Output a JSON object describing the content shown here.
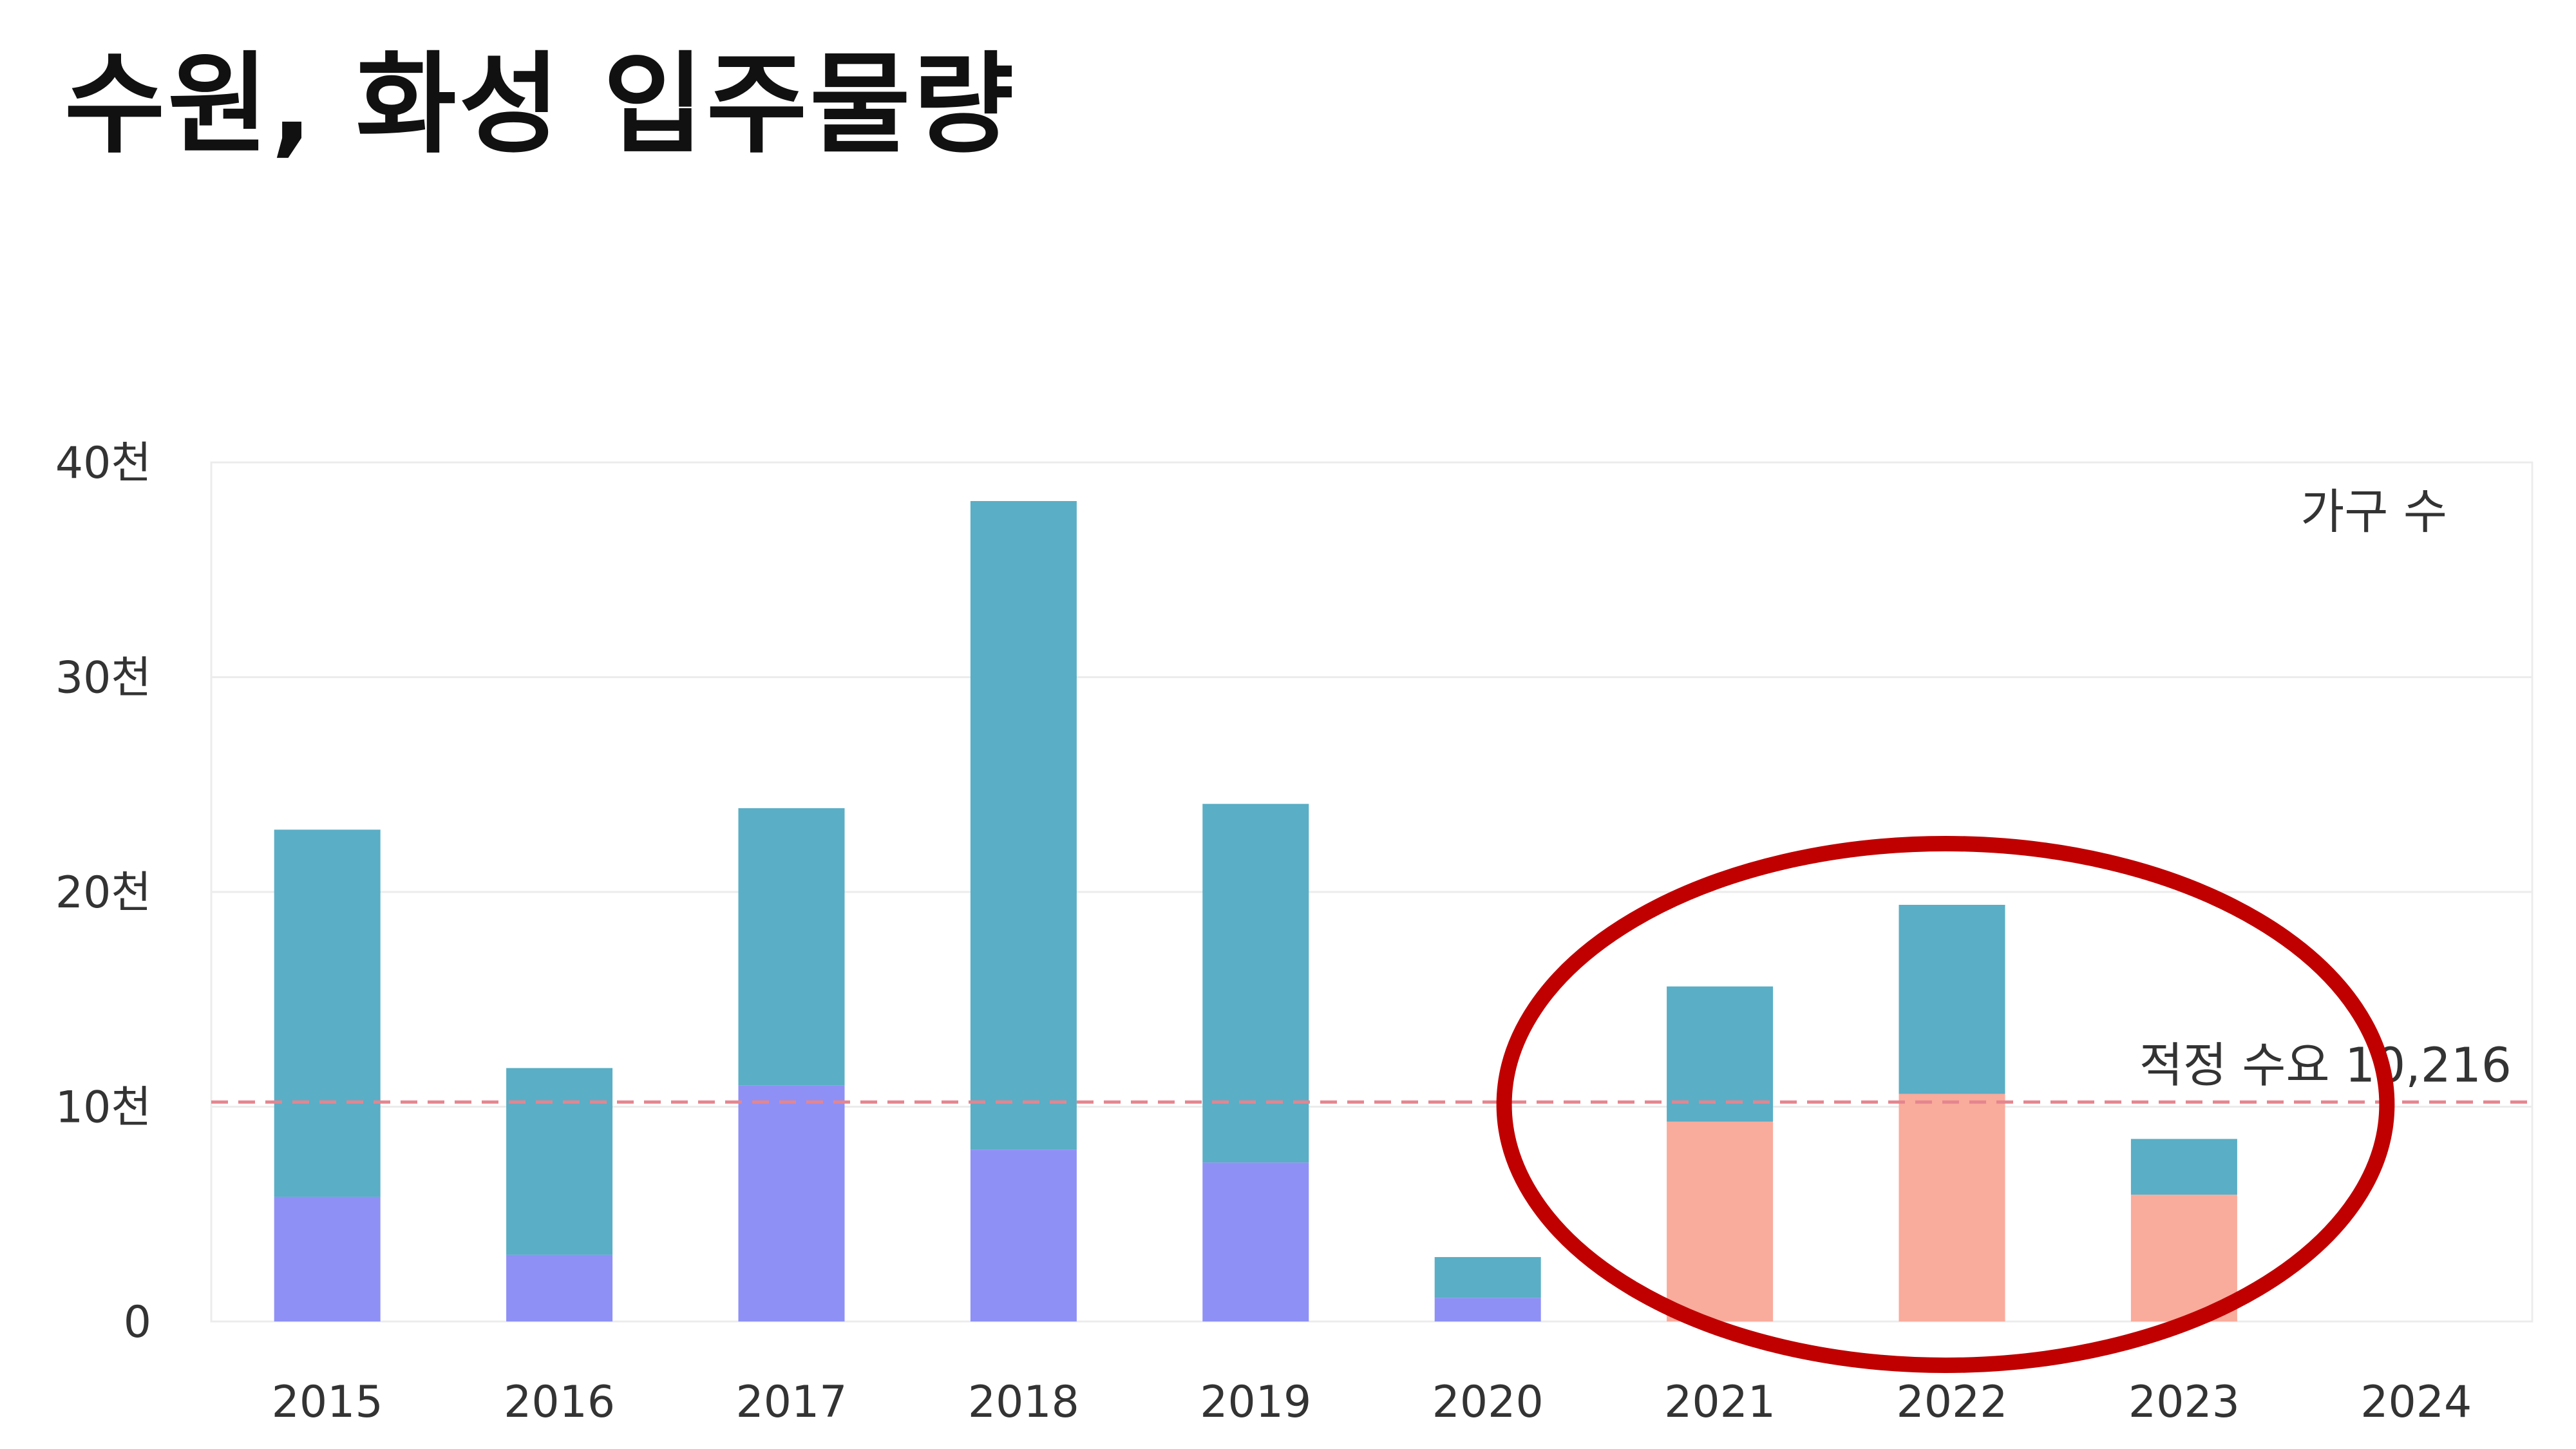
{
  "title": "수원, 화성 입주물량",
  "chart_data": {
    "type": "bar",
    "stacked": true,
    "categories": [
      "2015",
      "2016",
      "2017",
      "2018",
      "2019",
      "2020",
      "2021",
      "2022",
      "2023",
      "2024"
    ],
    "y_tick_labels": [
      "0",
      "10천",
      "20천",
      "30천",
      "40천"
    ],
    "ylim": [
      0,
      40000
    ],
    "grid": true,
    "unit_label": "가구 수",
    "reference_line": {
      "label": "적정 수요 10,216",
      "value": 10216,
      "color": "#e5858f",
      "style": "dashed"
    },
    "bars": [
      {
        "year": "2015",
        "lower": 5800,
        "total": 22900,
        "lower_color": "#8e90f5",
        "upper_color": "#5aaec5"
      },
      {
        "year": "2016",
        "lower": 3100,
        "total": 11800,
        "lower_color": "#8e90f5",
        "upper_color": "#5aaec5"
      },
      {
        "year": "2017",
        "lower": 11000,
        "total": 23900,
        "lower_color": "#8e90f5",
        "upper_color": "#5aaec5"
      },
      {
        "year": "2018",
        "lower": 8000,
        "total": 38200,
        "lower_color": "#8e90f5",
        "upper_color": "#5aaec5"
      },
      {
        "year": "2019",
        "lower": 7400,
        "total": 24100,
        "lower_color": "#8e90f5",
        "upper_color": "#5aaec5"
      },
      {
        "year": "2020",
        "lower": 1100,
        "total": 3000,
        "lower_color": "#8e90f5",
        "upper_color": "#5aaec5"
      },
      {
        "year": "2021",
        "lower": 9300,
        "total": 15600,
        "lower_color": "#f9ab9c",
        "upper_color": "#5aaec5"
      },
      {
        "year": "2022",
        "lower": 10600,
        "total": 19400,
        "lower_color": "#f9ab9c",
        "upper_color": "#5aaec5"
      },
      {
        "year": "2023",
        "lower": 5900,
        "total": 8500,
        "lower_color": "#f9ab9c",
        "upper_color": "#5aaec5"
      },
      {
        "year": "2024",
        "lower": 0,
        "total": 0,
        "lower_color": "#f9ab9c",
        "upper_color": "#5aaec5"
      }
    ],
    "highlight": {
      "shape": "ellipse",
      "color": "#c00000",
      "categories": [
        "2021",
        "2022",
        "2023"
      ]
    }
  }
}
